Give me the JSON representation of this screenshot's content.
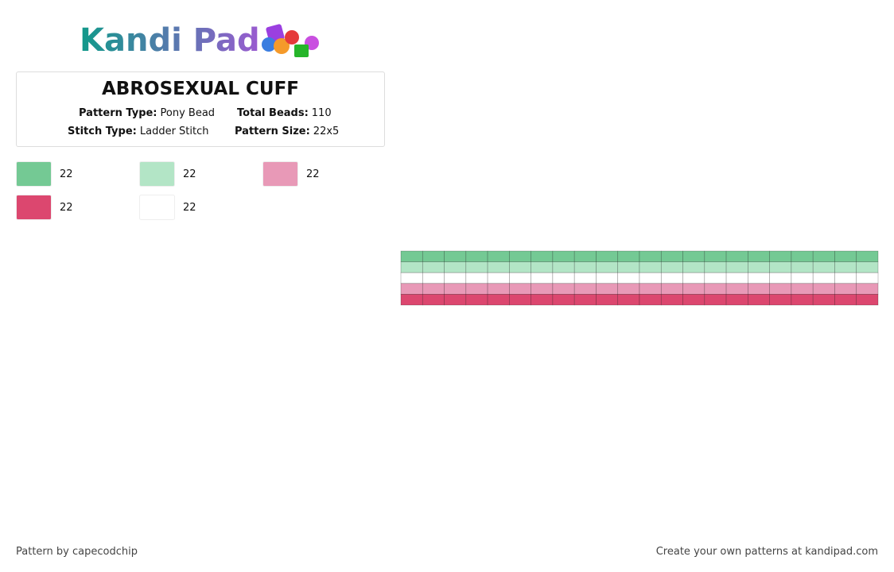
{
  "logo": {
    "text": "Kandi Pad"
  },
  "title": "ABROSEXUAL CUFF",
  "info": [
    {
      "label": "Pattern Type:",
      "value": "Pony Bead"
    },
    {
      "label": "Total Beads:",
      "value": 110
    },
    {
      "label": "Stitch Type:",
      "value": "Ladder Stitch"
    },
    {
      "label": "Pattern Size:",
      "value": "22x5"
    }
  ],
  "legend": [
    {
      "color": "#74c994",
      "count": 22
    },
    {
      "color": "#b3e5c6",
      "count": 22
    },
    {
      "color": "#e899b7",
      "count": 22
    },
    {
      "color": "#dc476f",
      "count": 22
    },
    {
      "color": "#ffffff",
      "count": 22
    }
  ],
  "pattern": {
    "columns": 22,
    "rows": [
      "#74c994",
      "#b3e5c6",
      "#ffffff",
      "#e899b7",
      "#dc476f"
    ]
  },
  "footer": {
    "left": "Pattern by capecodchip",
    "right": "Create your own patterns at kandipad.com"
  }
}
